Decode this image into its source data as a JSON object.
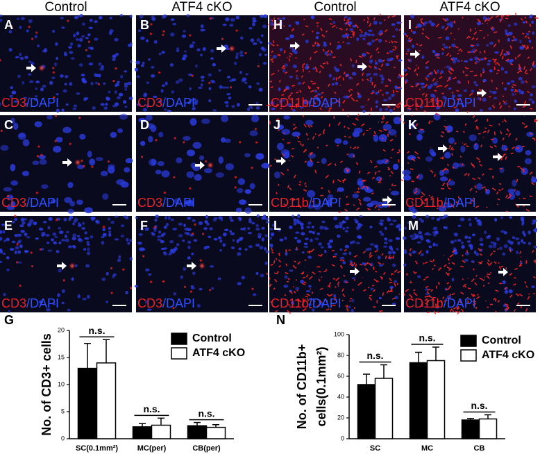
{
  "headers": [
    "Control",
    "ATF4 cKO",
    "Control",
    "ATF4 cKO"
  ],
  "panels": [
    {
      "letter": "A",
      "marker": "CD3",
      "counterstain": "/DAPI"
    },
    {
      "letter": "B",
      "marker": "CD3",
      "counterstain": "/DAPI"
    },
    {
      "letter": "H",
      "marker": "CD11b",
      "counterstain": "/DAPI"
    },
    {
      "letter": "I",
      "marker": "CD11b",
      "counterstain": "/DAPI"
    },
    {
      "letter": "C",
      "marker": "CD3",
      "counterstain": "/DAPI"
    },
    {
      "letter": "D",
      "marker": "CD3",
      "counterstain": "/DAPI"
    },
    {
      "letter": "J",
      "marker": "CD11b",
      "counterstain": "/DAPI"
    },
    {
      "letter": "K",
      "marker": "CD11b",
      "counterstain": "/DAPI"
    },
    {
      "letter": "E",
      "marker": "CD3",
      "counterstain": "/DAPI"
    },
    {
      "letter": "F",
      "marker": "CD3",
      "counterstain": "/DAPI"
    },
    {
      "letter": "L",
      "marker": "CD11b",
      "counterstain": "/DAPI"
    },
    {
      "letter": "M",
      "marker": "CD11b",
      "counterstain": "/DAPI"
    }
  ],
  "chart_data": [
    {
      "type": "bar",
      "panel_letter": "G",
      "ylabel": [
        "No. of CD3+ cells"
      ],
      "categories": [
        "SC(0.1mm²)",
        "MC(per)",
        "CB(per)"
      ],
      "series": [
        {
          "name": "Control",
          "color": "#000000",
          "values": [
            13,
            2.2,
            2.4
          ],
          "errors": [
            4.6,
            0.6,
            0.6
          ]
        },
        {
          "name": "ATF4 cKO",
          "color": "#ffffff",
          "values": [
            14,
            2.5,
            2.1
          ],
          "errors": [
            4.3,
            1.3,
            0.5
          ]
        }
      ],
      "annotations": [
        "n.s.",
        "n.s.",
        "n.s."
      ],
      "ylim": [
        0,
        20
      ],
      "yticks": [
        0,
        5,
        10,
        15,
        20
      ]
    },
    {
      "type": "bar",
      "panel_letter": "N",
      "ylabel": [
        "No. of CD11b+",
        "cells(0.1mm²)"
      ],
      "categories": [
        "SC",
        "MC",
        "CB"
      ],
      "series": [
        {
          "name": "Control",
          "color": "#000000",
          "values": [
            52,
            73,
            18
          ],
          "errors": [
            10,
            10,
            1.5
          ]
        },
        {
          "name": "ATF4 cKO",
          "color": "#ffffff",
          "values": [
            58,
            75,
            19
          ],
          "errors": [
            13,
            13,
            4
          ]
        }
      ],
      "annotations": [
        "n.s.",
        "n.s.",
        "n.s."
      ],
      "ylim": [
        0,
        100
      ],
      "yticks": [
        0,
        20,
        40,
        60,
        80,
        100
      ]
    }
  ]
}
